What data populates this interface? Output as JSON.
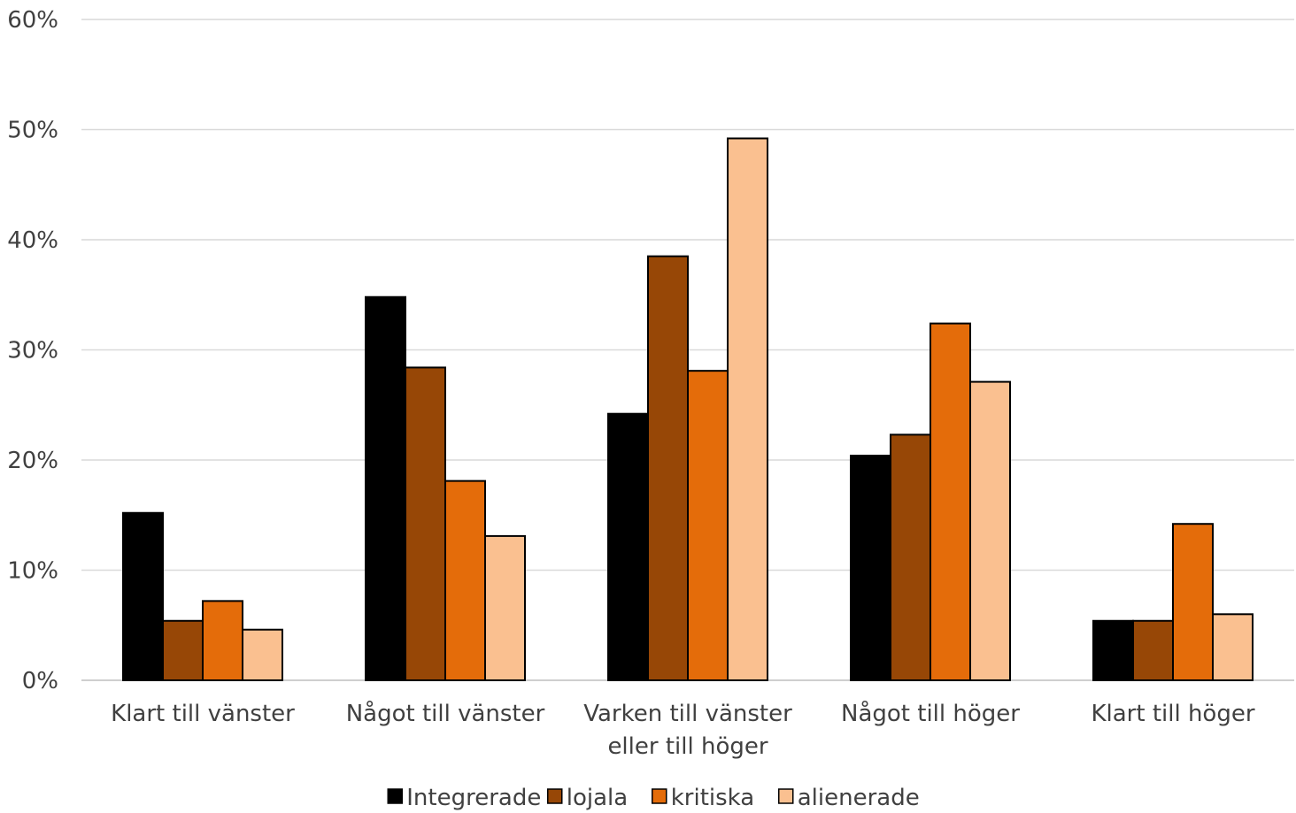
{
  "chart_data": {
    "type": "bar",
    "categories": [
      [
        "Klart till vänster"
      ],
      [
        "Något till vänster"
      ],
      [
        "Varken till vänster",
        "eller till höger"
      ],
      [
        "Något till höger"
      ],
      [
        "Klart till höger"
      ]
    ],
    "series": [
      {
        "name": "Integrerade",
        "color": "#000000",
        "values": [
          15.2,
          34.8,
          24.2,
          20.4,
          5.4
        ]
      },
      {
        "name": "lojala",
        "color": "#974706",
        "values": [
          5.4,
          28.4,
          38.5,
          22.3,
          5.4
        ]
      },
      {
        "name": "kritiska",
        "color": "#E46C0A",
        "values": [
          7.2,
          18.1,
          28.1,
          32.4,
          14.2
        ]
      },
      {
        "name": "alienerade",
        "color": "#FAC090",
        "values": [
          4.6,
          13.1,
          49.2,
          27.1,
          6.0
        ]
      }
    ],
    "yticks": [
      "0%",
      "10%",
      "20%",
      "30%",
      "40%",
      "50%",
      "60%"
    ],
    "ylim": [
      0,
      60
    ],
    "grid": true,
    "legend": "bottom",
    "title": "",
    "xlabel": "",
    "ylabel": ""
  }
}
